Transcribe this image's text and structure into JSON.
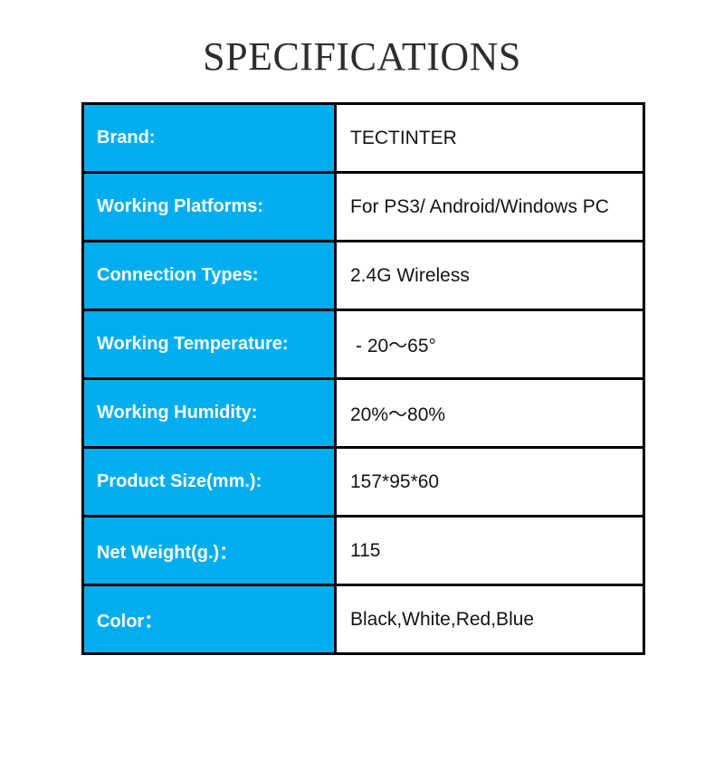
{
  "page": {
    "title": "SPECIFICATIONS"
  },
  "colors": {
    "label_background": "#00AEEF",
    "label_text": "#FFFFFF",
    "value_text": "#141414",
    "border": "#000000",
    "title_text": "#2D2D2D",
    "page_background": "#FFFFFF"
  },
  "spec_table": {
    "rows": [
      {
        "label": "Brand:",
        "value": "TECTINTER"
      },
      {
        "label": "Working Platforms:",
        "value": "For PS3/ Android/Windows PC"
      },
      {
        "label": "Connection Types:",
        "value": "2.4G Wireless"
      },
      {
        "label": "Working Temperature:",
        "value": "- 20～65°"
      },
      {
        "label": "Working Humidity:",
        "value": "20%～80%"
      },
      {
        "label": "Product Size(mm.):",
        "value": "157*95*60"
      },
      {
        "label": "Net Weight(g.)：",
        "value": "115"
      },
      {
        "label": "Color：",
        "value": "Black,White,Red,Blue"
      }
    ]
  }
}
